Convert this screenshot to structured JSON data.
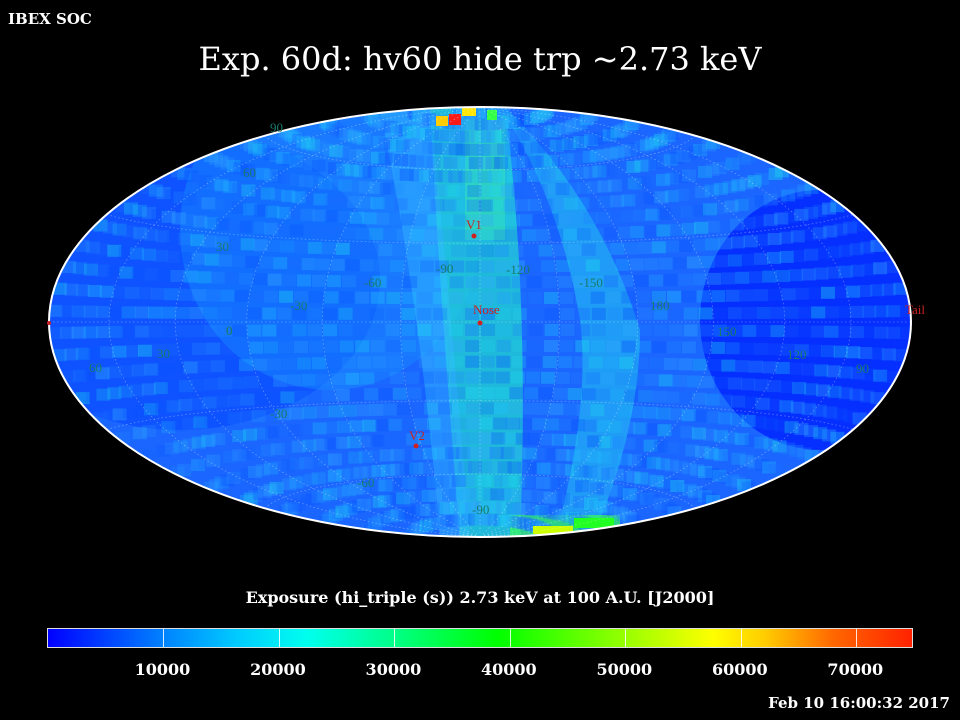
{
  "header": {
    "corner_label": "IBEX SOC",
    "title": "Exp.   60d: hv60 hide trp ~2.73 keV"
  },
  "map": {
    "projection": "Hammer-Aitoff",
    "grid": true,
    "lat_labels": [
      "90",
      "60",
      "30",
      "0",
      "-30",
      "-60",
      "-90"
    ],
    "lon_labels": [
      "-30",
      "-60",
      "-90",
      "-120",
      "-150",
      "180",
      "150",
      "120",
      "90",
      "60",
      "30",
      "0"
    ],
    "markers": [
      {
        "label": "V1",
        "color": "#cc2222"
      },
      {
        "label": "Nose",
        "color": "#cc2222"
      },
      {
        "label": "V2",
        "color": "#cc2222"
      },
      {
        "label": "Tail",
        "color": "#cc2222"
      }
    ]
  },
  "colorbar": {
    "label": "Exposure (hi_triple (s))  2.73 keV at 100 A.U. [J2000]",
    "ticks": [
      "10000",
      "20000",
      "30000",
      "40000",
      "50000",
      "60000",
      "70000"
    ],
    "range": [
      0,
      75000
    ],
    "colors": [
      "#0000ff",
      "#00aaff",
      "#00ffee",
      "#00ff00",
      "#ffff00",
      "#ff0000"
    ]
  },
  "footer": {
    "timestamp": "Feb 10 16:00:32 2017"
  }
}
